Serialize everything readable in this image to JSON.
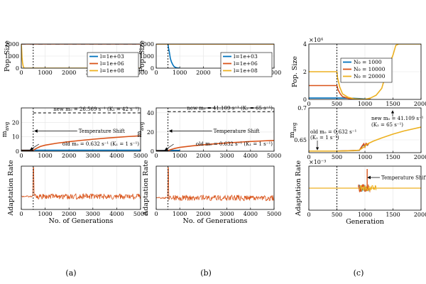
{
  "figure": {
    "captions": [
      "(a)",
      "(b)",
      "(c)"
    ]
  },
  "chart_data": [
    {
      "id": "a-top",
      "type": "line",
      "ylabel": "Pop. Size",
      "xlim": [
        0,
        5000
      ],
      "ylim": [
        0,
        2000
      ],
      "xticks": [
        "0",
        "1000",
        "2000",
        "3000",
        "4000",
        "5000"
      ],
      "yticks": [
        "0",
        "1000",
        "2000"
      ],
      "shift_x": 500,
      "series": [
        {
          "name": "l=1e+03",
          "color": "#0072BD",
          "x": [
            0,
            5000
          ],
          "y": [
            2000,
            2000
          ]
        },
        {
          "name": "l=1e+06",
          "color": "#D95319",
          "x": [
            0,
            5000
          ],
          "y": [
            2000,
            2000
          ]
        },
        {
          "name": "l=1e+08",
          "color": "#EDB120",
          "x": [
            0,
            15,
            30,
            50,
            70,
            90,
            110,
            130,
            5000
          ],
          "y": [
            2000,
            1500,
            900,
            500,
            250,
            100,
            30,
            0,
            0
          ]
        }
      ]
    },
    {
      "id": "a-mid",
      "type": "line",
      "ylabel": "m_avg",
      "xlim": [
        0,
        5000
      ],
      "ylim": [
        0,
        30
      ],
      "xticks": [
        "0",
        "1000",
        "2000",
        "3000",
        "4000",
        "5000"
      ],
      "yticks": [
        "0",
        "10",
        "20"
      ],
      "shift_x": 500,
      "dashed_level": 26.569,
      "solid_level": 0.632,
      "series": [
        {
          "name": "l=1e+03",
          "color": "#0072BD",
          "x": [
            0,
            500,
            5000
          ],
          "y": [
            0.632,
            0.7,
            0.7
          ]
        },
        {
          "name": "l=1e+06",
          "color": "#D95319",
          "x": [
            0,
            500,
            600,
            800,
            1000,
            1500,
            2000,
            2500,
            3000,
            3500,
            4000,
            4500,
            5000
          ],
          "y": [
            0.632,
            0.632,
            1.7,
            3.3,
            4.2,
            5.6,
            6.6,
            7.5,
            8.3,
            9.0,
            9.6,
            10.2,
            10.7
          ]
        }
      ],
      "annotations": {
        "new": "new m₀ = 26.569 s⁻¹ (K₂ = 42 s⁻¹)",
        "old": "old m₀ = 0.632 s⁻¹ (K₁ = 1 s⁻¹)",
        "shift": "Temperature Shift"
      }
    },
    {
      "id": "a-bot",
      "type": "line",
      "ylabel": "Adaptation Rate",
      "xlim": [
        0,
        5000
      ],
      "ylim": [
        -0.01,
        0.05
      ],
      "xticks": [
        "0",
        "1000",
        "2000",
        "3000",
        "4000",
        "5000"
      ],
      "yticks": [],
      "xlabel": "No. of Generations",
      "shift_x": 500,
      "spike_x": 500,
      "spike_y": 0.048,
      "base": 0.008,
      "series": [
        {
          "name": "l=1e+06",
          "color": "#D95319"
        }
      ]
    },
    {
      "id": "b-top",
      "type": "line",
      "ylabel": "Pop. Size",
      "xlim": [
        0,
        5000
      ],
      "ylim": [
        0,
        2000
      ],
      "xticks": [
        "0",
        "1000",
        "2000",
        "3000",
        "4000",
        "5000"
      ],
      "yticks": [
        "0",
        "1000",
        "2000"
      ],
      "shift_x": 500,
      "series": [
        {
          "name": "l=1e+03",
          "color": "#0072BD",
          "x": [
            500,
            520,
            560,
            600,
            650,
            700,
            750,
            800,
            850,
            900,
            950,
            1000
          ],
          "y": [
            2000,
            1700,
            1300,
            800,
            500,
            300,
            150,
            80,
            40,
            20,
            10,
            0
          ]
        },
        {
          "name": "l=1e+06",
          "color": "#D95319",
          "x": [
            0,
            5000
          ],
          "y": [
            2000,
            2000
          ]
        },
        {
          "name": "l=1e+08",
          "color": "#EDB120",
          "x": [
            0,
            5000
          ],
          "y": [
            2000,
            2000
          ]
        }
      ]
    },
    {
      "id": "b-mid",
      "type": "line",
      "ylabel": "m_avg",
      "xlim": [
        0,
        5000
      ],
      "ylim": [
        0,
        45
      ],
      "xticks": [
        "0",
        "1000",
        "2000",
        "3000",
        "4000",
        "5000"
      ],
      "yticks": [
        "0",
        "20",
        "40"
      ],
      "shift_x": 500,
      "dashed_level": 41.109,
      "solid_level": 0.632,
      "series": [
        {
          "name": "l=1e+03",
          "color": "#0072BD",
          "x": [
            0,
            500,
            1000
          ],
          "y": [
            0.632,
            0.9,
            0.9
          ]
        },
        {
          "name": "l=1e+06",
          "color": "#D95319",
          "x": [
            0,
            500,
            600,
            800,
            1000,
            1500,
            2000,
            2500,
            3000,
            3500,
            4000,
            4500,
            5000
          ],
          "y": [
            0.632,
            0.632,
            1.6,
            3.0,
            4.0,
            5.5,
            6.7,
            7.7,
            8.6,
            9.4,
            10.1,
            10.7,
            11.2
          ]
        }
      ],
      "annotations": {
        "new": "new m₀ = 41.109 s⁻¹ (K₂ = 65 s⁻¹)",
        "old": "old m₀ = 0.632 s⁻¹ (K₁ = 1 s⁻¹)",
        "shift": "Temperature Shift"
      }
    },
    {
      "id": "b-bot",
      "type": "line",
      "ylabel": "Adaptation Rate",
      "xlim": [
        0,
        5000
      ],
      "ylim": [
        -0.01,
        0.05
      ],
      "xticks": [
        "0",
        "1000",
        "2000",
        "3000",
        "4000",
        "5000"
      ],
      "yticks": [],
      "xlabel": "No. of Generations",
      "shift_x": 500,
      "spike_x": 500,
      "spike_y": 0.048,
      "base": 0.006,
      "series": [
        {
          "name": "l=1e+06",
          "color": "#D95319"
        }
      ]
    },
    {
      "id": "c-top",
      "type": "line",
      "ylabel": "Pop. Size",
      "exponent": "×10⁴",
      "xlim": [
        0,
        2000
      ],
      "ylim": [
        0,
        4
      ],
      "xticks": [
        "0",
        "500",
        "1000",
        "1500",
        "2000"
      ],
      "yticks": [
        "0",
        "2",
        "4"
      ],
      "shift_x": 500,
      "series": [
        {
          "name": "N₀ = 1000",
          "color": "#0072BD",
          "x": [
            0,
            500,
            520,
            600,
            700,
            800,
            900,
            1000,
            1050,
            1100
          ],
          "y": [
            0.1,
            0.1,
            0.1,
            0.1,
            0.09,
            0.08,
            0.06,
            0.03,
            0.01,
            0
          ]
        },
        {
          "name": "N₀ = 10000",
          "color": "#D95319",
          "x": [
            0,
            500,
            520,
            560,
            600,
            700,
            800,
            900,
            1000,
            1050,
            1100
          ],
          "y": [
            1,
            1,
            0.7,
            0.4,
            0.2,
            0.08,
            0.03,
            0.02,
            0.01,
            0.005,
            0
          ]
        },
        {
          "name": "N₀ = 20000",
          "color": "#EDB120",
          "x": [
            0,
            500,
            510,
            550,
            600,
            700,
            800,
            900,
            1000,
            1050,
            1100,
            1200,
            1300,
            1350,
            1400,
            1450,
            1500,
            1550,
            1600,
            1700,
            1800,
            1900,
            2000
          ],
          "y": [
            2,
            2,
            1.6,
            0.9,
            0.4,
            0.15,
            0.05,
            0.02,
            0.01,
            0.05,
            0.1,
            0.3,
            0.8,
            1.5,
            2.2,
            2.7,
            3.2,
            3.9,
            4,
            4,
            4,
            4,
            4
          ]
        }
      ]
    },
    {
      "id": "c-mid",
      "type": "line",
      "ylabel": "m_avg",
      "xlim": [
        0,
        2000
      ],
      "ylim": [
        0.63,
        0.7
      ],
      "xticks": [
        "0",
        "500",
        "1000",
        "1500",
        "2000"
      ],
      "yticks": [
        "0.65",
        "0.7"
      ],
      "shift_x": 500,
      "series": [
        {
          "name": "N₀ = 1000",
          "color": "#0072BD",
          "x": [
            0,
            500,
            900,
            950,
            980,
            1000,
            1020,
            1050
          ],
          "y": [
            0.6325,
            0.6325,
            0.6335,
            0.64,
            0.6425,
            0.6395,
            0.643,
            0.641
          ]
        },
        {
          "name": "N₀ = 10000",
          "color": "#D95319",
          "x": [
            0,
            500,
            900,
            950,
            980,
            1000,
            1020,
            1050,
            1070
          ],
          "y": [
            0.6325,
            0.6325,
            0.6336,
            0.6405,
            0.644,
            0.639,
            0.6445,
            0.642,
            0.645
          ]
        },
        {
          "name": "N₀ = 20000",
          "color": "#EDB120",
          "x": [
            0,
            500,
            800,
            900,
            1000,
            1050,
            1100,
            1150,
            1300,
            1500,
            1700,
            2000
          ],
          "y": [
            0.6325,
            0.6325,
            0.633,
            0.634,
            0.64,
            0.644,
            0.646,
            0.648,
            0.653,
            0.659,
            0.664,
            0.67
          ]
        }
      ],
      "annotations": {
        "new": "new m₀ = 41.109 s⁻¹",
        "new2": "(K₂ = 65 s⁻¹)",
        "old": "old m₀ = 0.632 s⁻¹",
        "old2": "(K₁ = 1 s⁻¹)"
      }
    },
    {
      "id": "c-bot",
      "type": "line",
      "ylabel": "Adaptation Rate",
      "exponent": "×10⁻³",
      "xlabel": "Generation",
      "xlim": [
        0,
        2000
      ],
      "ylim": [
        -1,
        1
      ],
      "xticks": [
        "0",
        "500",
        "1000",
        "1500",
        "2000"
      ],
      "yticks": [],
      "shift_x": 500,
      "series": [
        {
          "name": "N₀ = 1000",
          "color": "#0072BD"
        },
        {
          "name": "N₀ = 10000",
          "color": "#D95319"
        },
        {
          "name": "N₀ = 20000",
          "color": "#EDB120"
        }
      ],
      "annotations": {
        "shift": "Temperature Shift"
      }
    }
  ]
}
